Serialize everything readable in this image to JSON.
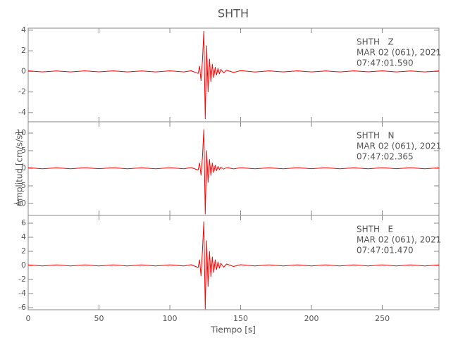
{
  "title": "SHTH",
  "x_label": "Tiempo [s]",
  "y_label": "Amplitud [cm/s/s]",
  "chart_data": [
    {
      "type": "line",
      "color": "#ff0000",
      "annotations": [
        "SHTH   Z",
        "MAR 02 (061), 2021",
        "07:47:01.590"
      ],
      "xlim": [
        0,
        290
      ],
      "ylim": [
        -4.9,
        4.2
      ],
      "yticks": [
        -4,
        -2,
        0,
        2,
        4
      ],
      "x": [
        0,
        10,
        20,
        30,
        40,
        50,
        60,
        70,
        80,
        90,
        100,
        110,
        115,
        120,
        121,
        122,
        123,
        124,
        125,
        126,
        127,
        128,
        129,
        130,
        131,
        132,
        133,
        134,
        135,
        136,
        138,
        140,
        145,
        150,
        160,
        170,
        180,
        190,
        200,
        210,
        220,
        230,
        240,
        250,
        260,
        270,
        280,
        290
      ],
      "values": [
        0.05,
        -0.05,
        0.04,
        -0.05,
        0.05,
        -0.04,
        0.05,
        -0.05,
        0.04,
        -0.05,
        0.05,
        -0.05,
        0.06,
        -0.2,
        0.5,
        -0.9,
        1.0,
        3.9,
        -4.6,
        2.5,
        -2.0,
        1.2,
        -1.0,
        0.7,
        -0.6,
        0.4,
        -0.35,
        0.3,
        -0.25,
        0.2,
        -0.15,
        0.12,
        -0.1,
        0.08,
        -0.06,
        0.05,
        -0.05,
        0.05,
        -0.05,
        0.04,
        -0.05,
        0.05,
        -0.04,
        0.05,
        -0.05,
        0.04,
        -0.05,
        0.04
      ]
    },
    {
      "type": "line",
      "color": "#ff0000",
      "annotations": [
        "SHTH   N",
        "MAR 02 (061), 2021",
        "07:47:02.365"
      ],
      "xlim": [
        0,
        290
      ],
      "ylim": [
        -13.4,
        13.2
      ],
      "yticks": [
        -10,
        -5,
        0,
        5,
        10
      ],
      "x": [
        0,
        10,
        20,
        30,
        40,
        50,
        60,
        70,
        80,
        90,
        100,
        110,
        115,
        120,
        121,
        122,
        123,
        124,
        125,
        126,
        127,
        128,
        129,
        130,
        131,
        132,
        133,
        134,
        135,
        136,
        138,
        140,
        145,
        150,
        160,
        170,
        180,
        190,
        200,
        210,
        220,
        230,
        240,
        250,
        260,
        270,
        280,
        290
      ],
      "values": [
        0.15,
        -0.15,
        0.12,
        -0.15,
        0.15,
        -0.12,
        0.15,
        -0.15,
        0.12,
        -0.15,
        0.15,
        -0.15,
        0.2,
        -0.5,
        1.5,
        -2,
        3,
        11,
        -13,
        5,
        -4,
        2.5,
        -2,
        1.5,
        -1.2,
        0.9,
        -0.7,
        0.5,
        -0.4,
        0.3,
        -0.25,
        0.2,
        -0.18,
        0.15,
        -0.15,
        0.12,
        -0.15,
        0.15,
        -0.12,
        0.15,
        -0.15,
        0.12,
        -0.15,
        0.15,
        -0.12,
        0.15,
        -0.15,
        0.12
      ]
    },
    {
      "type": "line",
      "color": "#ff0000",
      "annotations": [
        "SHTH   E",
        "MAR 02 (061), 2021",
        "07:47:01.470"
      ],
      "xlim": [
        0,
        290
      ],
      "ylim": [
        -6.3,
        7.1
      ],
      "yticks": [
        -6,
        -4,
        -2,
        0,
        2,
        4,
        6
      ],
      "xticks": [
        0,
        50,
        100,
        150,
        200,
        250
      ],
      "x": [
        0,
        10,
        20,
        30,
        40,
        50,
        60,
        70,
        80,
        90,
        100,
        110,
        115,
        120,
        121,
        122,
        123,
        124,
        125,
        126,
        127,
        128,
        129,
        130,
        131,
        132,
        133,
        134,
        135,
        136,
        138,
        140,
        145,
        150,
        160,
        170,
        180,
        190,
        200,
        210,
        220,
        230,
        240,
        250,
        260,
        270,
        280,
        290
      ],
      "values": [
        0.08,
        -0.08,
        0.07,
        -0.08,
        0.08,
        -0.07,
        0.08,
        -0.08,
        0.07,
        -0.08,
        0.08,
        -0.08,
        0.1,
        -0.3,
        0.8,
        -1.5,
        2,
        6.2,
        -6.2,
        3.5,
        -3,
        2,
        -1.6,
        1.2,
        -1,
        0.8,
        -0.6,
        0.5,
        -0.4,
        0.3,
        -0.25,
        0.2,
        -0.15,
        0.1,
        -0.08,
        0.08,
        -0.07,
        0.08,
        -0.08,
        0.07,
        -0.08,
        0.08,
        -0.07,
        0.08,
        -0.08,
        0.07,
        -0.08,
        0.08
      ]
    }
  ]
}
